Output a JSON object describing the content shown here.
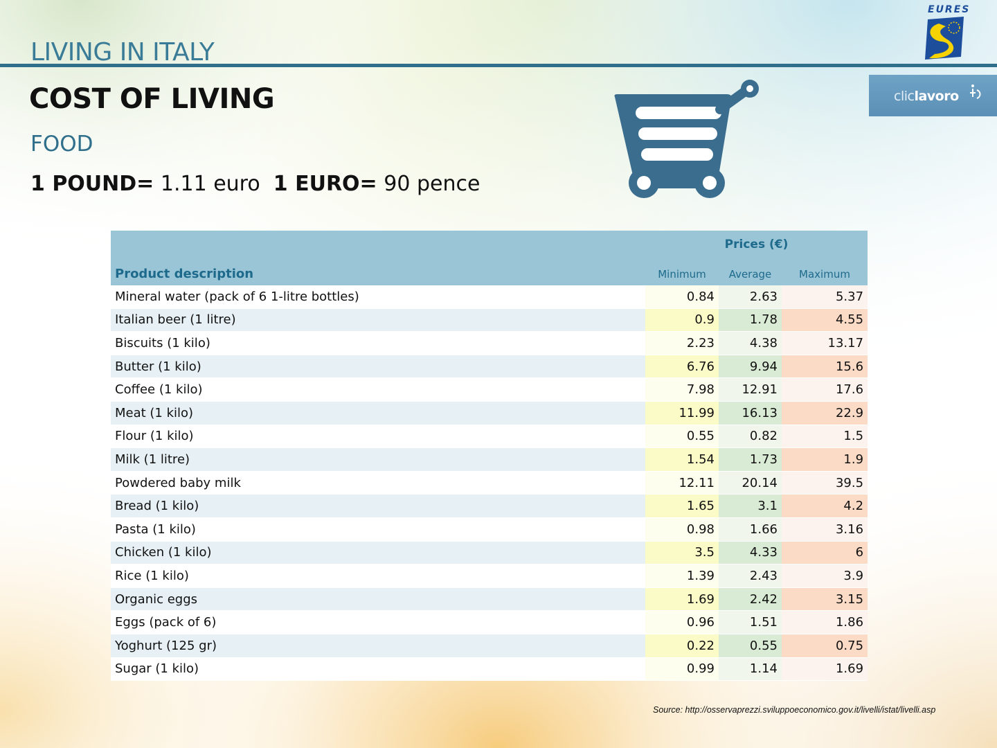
{
  "slide": {
    "header_title": "LIVING IN ITALY",
    "heading": "COST OF LIVING",
    "subheading": "FOOD",
    "exchange": {
      "pound_label": "1 POUND=",
      "pound_value": " 1.11 euro",
      "euro_label": "1 EURO=",
      "euro_value": " 90 pence"
    },
    "logos": {
      "eures_text": "EURES",
      "cliclavoro_light": "clic",
      "cliclavoro_bold": "lavoro"
    },
    "source": "Source: http://osservaprezzi.sviluppoeconomico.gov.it/livelli/istat/livelli.asp"
  },
  "table": {
    "prices_label": "Prices (€)",
    "description_label": "Product description",
    "col_minimum": "Minimum",
    "col_average": "Average",
    "col_maximum": "Maximum",
    "rows": [
      {
        "desc": "Mineral water (pack of 6 1-litre bottles)",
        "min": "0.84",
        "avg": "2.63",
        "max": "5.37"
      },
      {
        "desc": "Italian beer  (1 litre)",
        "min": "0.9",
        "avg": "1.78",
        "max": "4.55"
      },
      {
        "desc": "Biscuits (1 kilo)",
        "min": "2.23",
        "avg": "4.38",
        "max": "13.17"
      },
      {
        "desc": "Butter (1 kilo)",
        "min": "6.76",
        "avg": "9.94",
        "max": "15.6"
      },
      {
        "desc": "Coffee (1 kilo)",
        "min": "7.98",
        "avg": "12.91",
        "max": "17.6"
      },
      {
        "desc": "Meat (1 kilo)",
        "min": "11.99",
        "avg": "16.13",
        "max": "22.9"
      },
      {
        "desc": "Flour (1 kilo)",
        "min": "0.55",
        "avg": "0.82",
        "max": "1.5"
      },
      {
        "desc": "Milk (1 litre)",
        "min": "1.54",
        "avg": "1.73",
        "max": "1.9"
      },
      {
        "desc": "Powdered baby milk",
        "min": "12.11",
        "avg": "20.14",
        "max": "39.5"
      },
      {
        "desc": "Bread (1 kilo)",
        "min": "1.65",
        "avg": "3.1",
        "max": "4.2"
      },
      {
        "desc": "Pasta (1 kilo)",
        "min": "0.98",
        "avg": "1.66",
        "max": "3.16"
      },
      {
        "desc": "Chicken (1 kilo)",
        "min": "3.5",
        "avg": "4.33",
        "max": "6"
      },
      {
        "desc": "Rice (1 kilo)",
        "min": "1.39",
        "avg": "2.43",
        "max": "3.9"
      },
      {
        "desc": "Organic eggs",
        "min": "1.69",
        "avg": "2.42",
        "max": "3.15"
      },
      {
        "desc": "Eggs (pack of 6)",
        "min": "0.96",
        "avg": "1.51",
        "max": "1.86"
      },
      {
        "desc": "Yoghurt (125 gr)",
        "min": "0.22",
        "avg": "0.55",
        "max": "0.75"
      },
      {
        "desc": "Sugar (1 kilo)",
        "min": "0.99",
        "avg": "1.14",
        "max": "1.69"
      }
    ]
  },
  "icons": {
    "cart": "shopping-cart-icon",
    "eures": "eures-logo-icon",
    "cliclavoro": "cliclavoro-logo-icon"
  },
  "colors": {
    "accent": "#2f6f8c",
    "header_blue": "#3a7c97",
    "table_header": "#99c5d6",
    "cart": "#3a6d8e"
  }
}
